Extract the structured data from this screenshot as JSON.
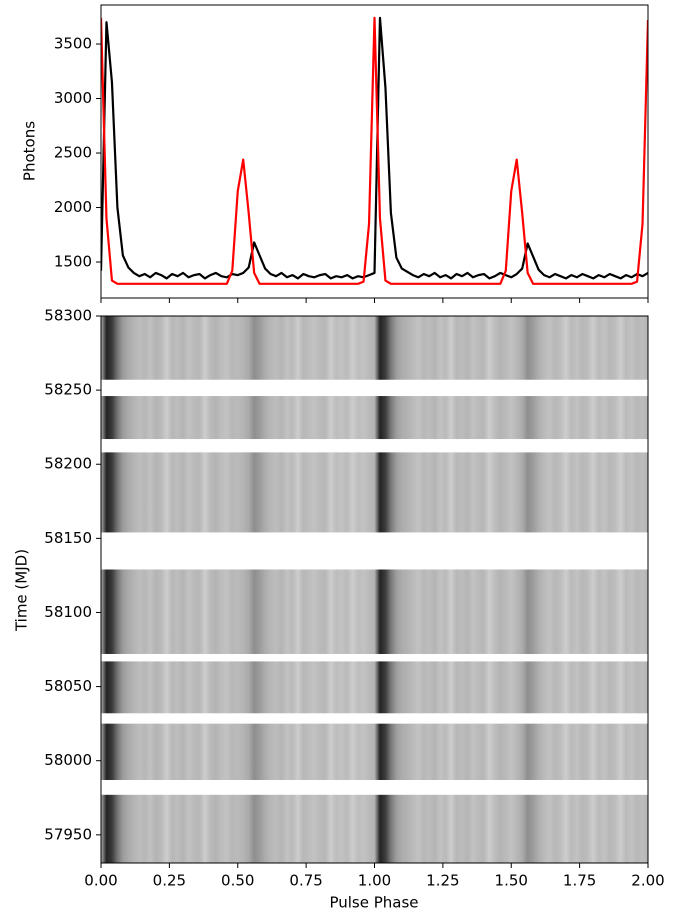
{
  "chart_data": [
    {
      "type": "line",
      "ylabel": "Photons",
      "x": [
        0,
        0.02,
        0.04,
        0.06,
        0.08,
        0.1,
        0.12,
        0.14,
        0.16,
        0.18,
        0.2,
        0.22,
        0.24,
        0.26,
        0.28,
        0.3,
        0.32,
        0.34,
        0.36,
        0.38,
        0.4,
        0.42,
        0.44,
        0.46,
        0.48,
        0.5,
        0.52,
        0.54,
        0.56,
        0.58,
        0.6,
        0.62,
        0.64,
        0.66,
        0.68,
        0.7,
        0.72,
        0.74,
        0.76,
        0.78,
        0.8,
        0.82,
        0.84,
        0.86,
        0.88,
        0.9,
        0.92,
        0.94,
        0.96,
        0.98,
        1,
        1.02,
        1.04,
        1.06,
        1.08,
        1.1,
        1.12,
        1.14,
        1.16,
        1.18,
        1.2,
        1.22,
        1.24,
        1.26,
        1.28,
        1.3,
        1.32,
        1.34,
        1.36,
        1.38,
        1.4,
        1.42,
        1.44,
        1.46,
        1.48,
        1.5,
        1.52,
        1.54,
        1.56,
        1.58,
        1.6,
        1.62,
        1.64,
        1.66,
        1.68,
        1.7,
        1.72,
        1.74,
        1.76,
        1.78,
        1.8,
        1.82,
        1.84,
        1.86,
        1.88,
        1.9,
        1.92,
        1.94,
        1.96,
        1.98,
        2
      ],
      "series": [
        {
          "color": "#000000",
          "values": [
            1420,
            3700,
            3150,
            2000,
            1560,
            1450,
            1400,
            1370,
            1390,
            1360,
            1400,
            1380,
            1350,
            1390,
            1370,
            1400,
            1360,
            1380,
            1390,
            1350,
            1380,
            1400,
            1370,
            1360,
            1390,
            1380,
            1400,
            1450,
            1680,
            1560,
            1440,
            1390,
            1370,
            1400,
            1360,
            1380,
            1350,
            1390,
            1370,
            1360,
            1380,
            1390,
            1350,
            1370,
            1360,
            1380,
            1350,
            1370,
            1360,
            1380,
            1400,
            3740,
            3100,
            1950,
            1540,
            1440,
            1410,
            1380,
            1360,
            1390,
            1370,
            1400,
            1360,
            1380,
            1350,
            1390,
            1370,
            1400,
            1360,
            1380,
            1390,
            1350,
            1370,
            1400,
            1380,
            1360,
            1390,
            1440,
            1670,
            1550,
            1430,
            1380,
            1360,
            1390,
            1370,
            1350,
            1380,
            1360,
            1390,
            1370,
            1350,
            1380,
            1360,
            1390,
            1370,
            1350,
            1380,
            1360,
            1390,
            1370,
            1400
          ]
        },
        {
          "color": "#ff0000",
          "values": [
            3740,
            1900,
            1330,
            1300,
            1300,
            1300,
            1300,
            1300,
            1300,
            1300,
            1300,
            1300,
            1300,
            1300,
            1300,
            1300,
            1300,
            1300,
            1300,
            1300,
            1300,
            1300,
            1300,
            1300,
            1420,
            2150,
            2440,
            1950,
            1400,
            1300,
            1300,
            1300,
            1300,
            1300,
            1300,
            1300,
            1300,
            1300,
            1300,
            1300,
            1300,
            1300,
            1300,
            1300,
            1300,
            1300,
            1300,
            1300,
            1320,
            1850,
            3740,
            1900,
            1330,
            1300,
            1300,
            1300,
            1300,
            1300,
            1300,
            1300,
            1300,
            1300,
            1300,
            1300,
            1300,
            1300,
            1300,
            1300,
            1300,
            1300,
            1300,
            1300,
            1300,
            1300,
            1420,
            2150,
            2440,
            1950,
            1400,
            1300,
            1300,
            1300,
            1300,
            1300,
            1300,
            1300,
            1300,
            1300,
            1300,
            1300,
            1300,
            1300,
            1300,
            1300,
            1300,
            1300,
            1300,
            1300,
            1320,
            1850,
            3720
          ]
        }
      ],
      "xlim": [
        0,
        2
      ],
      "ylim": [
        1170,
        3858
      ],
      "yticks": [
        1500,
        2000,
        2500,
        3000,
        3500
      ]
    },
    {
      "type": "phaseogram",
      "ylabel": "Time (MJD)",
      "xlabel": "Pulse Phase",
      "xlim": [
        0,
        2
      ],
      "ylim": [
        57931,
        58300
      ],
      "xticks": [
        {
          "value": 0,
          "label": "0.00"
        },
        {
          "value": 0.25,
          "label": "0.25"
        },
        {
          "value": 0.5,
          "label": "0.50"
        },
        {
          "value": 0.75,
          "label": "0.75"
        },
        {
          "value": 1,
          "label": "1.00"
        },
        {
          "value": 1.25,
          "label": "1.25"
        },
        {
          "value": 1.5,
          "label": "1.50"
        },
        {
          "value": 1.75,
          "label": "1.75"
        },
        {
          "value": 2,
          "label": "2.00"
        }
      ],
      "yticks": [
        57950,
        58000,
        58050,
        58100,
        58150,
        58200,
        58250,
        58300
      ],
      "segments": [
        [
          58257,
          58300
        ],
        [
          58217,
          58246
        ],
        [
          58154,
          58208
        ],
        [
          58072,
          58129
        ],
        [
          58032,
          58067
        ],
        [
          57987,
          58025
        ],
        [
          57931,
          57977
        ]
      ]
    }
  ]
}
